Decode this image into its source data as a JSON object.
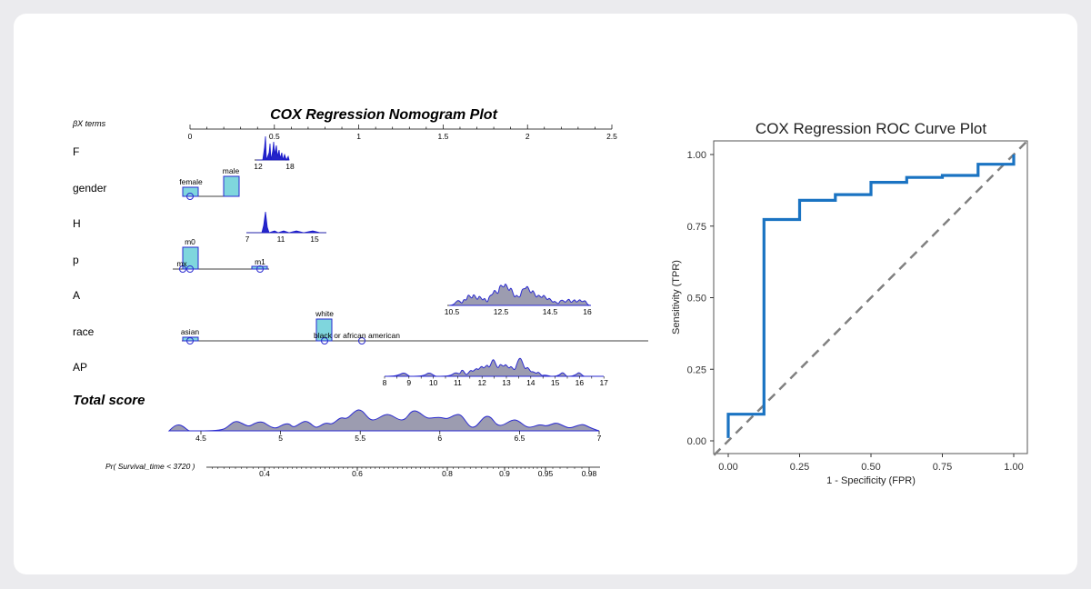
{
  "nomogram": {
    "chart_data": {
      "type": "nomogram",
      "title": "COX Regression Nomogram Plot",
      "axis_caption": "βX terms",
      "beta_axis": {
        "min": 0,
        "max": 2.5,
        "labels": [
          "0",
          "0.5",
          "1",
          "1.5",
          "2",
          "2.5"
        ],
        "label_values": [
          0,
          0.5,
          1,
          1.5,
          2,
          2.5
        ]
      },
      "rows": [
        {
          "label": "F",
          "kind": "density",
          "tick_labels": [
            "12",
            "18"
          ],
          "tick_values": [
            12,
            18
          ]
        },
        {
          "label": "gender",
          "kind": "boxes",
          "levels": [
            "female",
            "male"
          ]
        },
        {
          "label": "H",
          "kind": "density",
          "tick_labels": [
            "7",
            "11",
            "15"
          ],
          "tick_values": [
            7,
            11,
            15
          ]
        },
        {
          "label": "p",
          "kind": "boxes",
          "levels": [
            "m0",
            "mx",
            "m1"
          ]
        },
        {
          "label": "A",
          "kind": "density",
          "tick_labels": [
            "10.5",
            "12.5",
            "14.5",
            "16"
          ],
          "tick_values": [
            10.5,
            12.5,
            14.5,
            16
          ]
        },
        {
          "label": "race",
          "kind": "boxes",
          "levels": [
            "asian",
            "white",
            "black or african american"
          ]
        },
        {
          "label": "AP",
          "kind": "density",
          "tick_labels": [
            "8",
            "9",
            "10",
            "11",
            "12",
            "13",
            "14",
            "15",
            "16",
            "17"
          ],
          "tick_values": [
            8,
            9,
            10,
            11,
            12,
            13,
            14,
            15,
            16,
            17
          ]
        }
      ],
      "total_score": {
        "label": "Total score",
        "tick_labels": [
          "4.5",
          "5",
          "5.5",
          "6",
          "6.5",
          "7"
        ],
        "tick_values": [
          4.5,
          5,
          5.5,
          6,
          6.5,
          7
        ]
      },
      "probability": {
        "label": "Pr( Survival_time < 3720 )",
        "tick_labels": [
          "0.4",
          "0.6",
          "0.8",
          "0.9",
          "0.95",
          "0.98"
        ],
        "tick_values": [
          0.4,
          0.6,
          0.8,
          0.9,
          0.95,
          0.98
        ]
      }
    }
  },
  "roc": {
    "chart_data": {
      "type": "line",
      "title": "COX Regression ROC Curve Plot",
      "xlabel": "1 - Specificity (FPR)",
      "ylabel": "Sensitivity (TPR)",
      "xlim": [
        0,
        1
      ],
      "ylim": [
        0,
        1
      ],
      "x_ticks": [
        "0.00",
        "0.25",
        "0.50",
        "0.75",
        "1.00"
      ],
      "y_ticks": [
        "0.00",
        "0.25",
        "0.50",
        "0.75",
        "1.00"
      ],
      "series": [
        {
          "name": "ROC curve",
          "color": "#1a73c2",
          "x": [
            0,
            0,
            0.125,
            0.125,
            0.25,
            0.25,
            0.375,
            0.375,
            0.5,
            0.5,
            0.625,
            0.625,
            0.75,
            0.75,
            0.875,
            0.875,
            1,
            1
          ],
          "y": [
            0.01,
            0.093,
            0.093,
            0.773,
            0.773,
            0.84,
            0.84,
            0.86,
            0.86,
            0.903,
            0.903,
            0.92,
            0.92,
            0.927,
            0.927,
            0.966,
            0.966,
            1
          ]
        },
        {
          "name": "reference diagonal",
          "color": "#808080",
          "x": [
            0,
            1
          ],
          "y": [
            0,
            1
          ]
        }
      ]
    }
  }
}
